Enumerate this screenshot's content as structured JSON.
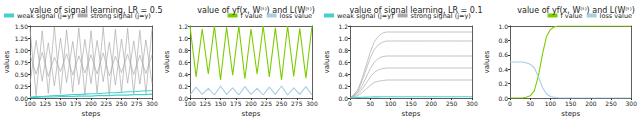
{
  "chart_data": [
    {
      "type": "line",
      "title": "value of signal learning, LR = 0.5",
      "x_label": "steps",
      "y_label": "values",
      "x": [
        100,
        110,
        120,
        130,
        140,
        150,
        160,
        170,
        180,
        190,
        200,
        210,
        220,
        230,
        240,
        250,
        260,
        270,
        280,
        290,
        300
      ],
      "xlim": [
        100,
        300
      ],
      "xticks": [
        100,
        125,
        150,
        175,
        200,
        225,
        250,
        275,
        300
      ],
      "ylim": [
        0,
        1.5
      ],
      "yticks": [
        {
          "value": 0,
          "label": "0.00"
        },
        0.25,
        {
          "value": 0.5,
          "label": "0.50"
        },
        0.75,
        {
          "value": 1,
          "label": "1.00"
        },
        1.25,
        {
          "value": 1.5,
          "label": "1.50"
        }
      ],
      "grid": false,
      "legend": "upper left",
      "series": [
        {
          "name": "weak signal (j=y)",
          "color": "#48d1cc",
          "values": [
            0.02,
            0.03,
            0.03,
            0.04,
            0.05,
            0.05,
            0.06,
            0.07,
            0.07,
            0.08,
            0.09,
            0.09,
            0.1,
            0.11,
            0.11,
            0.12,
            0.13,
            0.13,
            0.14,
            0.15,
            0.15
          ]
        },
        {
          "name": "strong signal (j=y)",
          "color": "#aaaaaa",
          "values": [
            1.45,
            0.05,
            1.4,
            0.1,
            1.48,
            0.08,
            1.42,
            0.12,
            1.46,
            0.06,
            1.4,
            0.1,
            1.47,
            0.05,
            1.43,
            0.11,
            1.45,
            0.07,
            1.41,
            0.09,
            1.44
          ]
        },
        {
          "name": "strong signal (j=y)",
          "color": "#aaaaaa",
          "values": [
            0.3,
            1.2,
            0.35,
            1.15,
            0.25,
            1.25,
            0.32,
            1.18,
            0.28,
            1.22,
            0.3,
            1.2,
            0.34,
            1.16,
            0.27,
            1.23,
            0.31,
            1.19,
            0.29,
            1.21,
            0.3
          ]
        },
        {
          "name": "strong signal (j=y)",
          "color": "#aaaaaa",
          "values": [
            0.9,
            0.5,
            0.95,
            0.45,
            0.85,
            0.55,
            0.92,
            0.48,
            0.88,
            0.52,
            0.9,
            0.5,
            0.94,
            0.46,
            0.87,
            0.53,
            0.91,
            0.49,
            0.89,
            0.51,
            0.9
          ]
        },
        {
          "name": "weak signal (j=y)",
          "color": "#48d1cc",
          "values": [
            0.01,
            0.01,
            0.02,
            0.02,
            0.02,
            0.03,
            0.03,
            0.03,
            0.04,
            0.04,
            0.04,
            0.05,
            0.05,
            0.05,
            0.06,
            0.06,
            0.06,
            0.07,
            0.07,
            0.07,
            0.08
          ]
        }
      ]
    },
    {
      "type": "line",
      "title": "value of yf(x, W⁽ᵗ⁾) and L(W⁽ᵗ⁾)",
      "x_label": "steps",
      "y_label": "values",
      "x": [
        100,
        110,
        120,
        130,
        140,
        150,
        160,
        170,
        180,
        190,
        200,
        210,
        220,
        230,
        240,
        250,
        260,
        270,
        280,
        290,
        300
      ],
      "xlim": [
        100,
        300
      ],
      "xticks": [
        100,
        125,
        150,
        175,
        200,
        225,
        250,
        275,
        300
      ],
      "ylim": [
        0,
        1.2
      ],
      "yticks": [
        {
          "value": 0,
          "label": "0.0"
        },
        0.2,
        0.4,
        0.6,
        0.8,
        {
          "value": 1,
          "label": "1.0"
        },
        1.2
      ],
      "grid": false,
      "legend": "upper right",
      "series": [
        {
          "name": "f value",
          "color": "#7ccd00",
          "values": [
            1.2,
            0.35,
            1.15,
            0.4,
            1.2,
            0.3,
            1.18,
            0.38,
            1.2,
            0.32,
            1.15,
            0.4,
            1.2,
            0.35,
            1.17,
            0.3,
            1.2,
            0.36,
            1.16,
            0.33,
            1.2
          ]
        },
        {
          "name": "loss value",
          "color": "#a6cee3",
          "values": [
            0.05,
            0.18,
            0.06,
            0.16,
            0.05,
            0.2,
            0.06,
            0.17,
            0.05,
            0.19,
            0.06,
            0.16,
            0.05,
            0.18,
            0.06,
            0.2,
            0.05,
            0.17,
            0.06,
            0.19,
            0.05
          ]
        }
      ]
    },
    {
      "type": "line",
      "title": "value of signal learning, LR = 0.1",
      "x_label": "steps",
      "y_label": "values",
      "x": [
        0,
        10,
        20,
        30,
        40,
        50,
        60,
        70,
        80,
        90,
        100,
        110,
        120,
        130,
        140,
        150,
        160,
        170,
        180,
        190,
        200,
        210,
        220,
        230,
        240,
        250,
        260,
        270,
        280,
        290,
        300
      ],
      "xlim": [
        0,
        300
      ],
      "xticks": [
        0,
        50,
        100,
        150,
        200,
        250,
        300
      ],
      "ylim": [
        0,
        1.2
      ],
      "yticks": [
        {
          "value": 0,
          "label": "0.0"
        },
        0.2,
        0.4,
        0.6,
        0.8,
        {
          "value": 1,
          "label": "1.0"
        },
        1.2
      ],
      "grid": false,
      "legend": "upper left",
      "series": [
        {
          "name": "weak signal (j=y)",
          "color": "#48d1cc",
          "values": [
            0,
            0.005,
            0.01,
            0.012,
            0.015,
            0.017,
            0.018,
            0.019,
            0.02,
            0.02,
            0.02,
            0.02,
            0.02,
            0.02,
            0.02,
            0.02,
            0.02,
            0.02,
            0.02,
            0.02,
            0.02,
            0.02,
            0.02,
            0.02,
            0.02,
            0.02,
            0.02,
            0.02,
            0.02,
            0.02,
            0.02
          ]
        },
        {
          "name": "strong signal (j=y)",
          "color": "#aaaaaa",
          "values": [
            0,
            0.06,
            0.15,
            0.33,
            0.55,
            0.77,
            0.94,
            1.03,
            1.08,
            1.1,
            1.1,
            1.1,
            1.1,
            1.1,
            1.1,
            1.1,
            1.1,
            1.1,
            1.1,
            1.1,
            1.1,
            1.1,
            1.1,
            1.1,
            1.1,
            1.1,
            1.1,
            1.1,
            1.1,
            1.1,
            1.1
          ]
        },
        {
          "name": "strong signal (j=y)",
          "color": "#aaaaaa",
          "values": [
            0,
            0.05,
            0.13,
            0.29,
            0.48,
            0.67,
            0.81,
            0.89,
            0.93,
            0.95,
            0.95,
            0.95,
            0.95,
            0.95,
            0.95,
            0.95,
            0.95,
            0.95,
            0.95,
            0.95,
            0.95,
            0.95,
            0.95,
            0.95,
            0.95,
            0.95,
            0.95,
            0.95,
            0.95,
            0.95,
            0.95
          ]
        },
        {
          "name": "strong signal (j=y)",
          "color": "#aaaaaa",
          "values": [
            0,
            0.04,
            0.1,
            0.21,
            0.35,
            0.49,
            0.6,
            0.66,
            0.69,
            0.7,
            0.7,
            0.7,
            0.7,
            0.7,
            0.7,
            0.7,
            0.7,
            0.7,
            0.7,
            0.7,
            0.7,
            0.7,
            0.7,
            0.7,
            0.7,
            0.7,
            0.7,
            0.7,
            0.7,
            0.7,
            0.7
          ]
        },
        {
          "name": "strong signal (j=y)",
          "color": "#aaaaaa",
          "values": [
            0,
            0.03,
            0.07,
            0.15,
            0.25,
            0.35,
            0.43,
            0.47,
            0.49,
            0.5,
            0.5,
            0.5,
            0.5,
            0.5,
            0.5,
            0.5,
            0.5,
            0.5,
            0.5,
            0.5,
            0.5,
            0.5,
            0.5,
            0.5,
            0.5,
            0.5,
            0.5,
            0.5,
            0.5,
            0.5,
            0.5
          ]
        },
        {
          "name": "strong signal (j=y)",
          "color": "#aaaaaa",
          "values": [
            0,
            0.02,
            0.04,
            0.09,
            0.15,
            0.21,
            0.26,
            0.28,
            0.29,
            0.3,
            0.3,
            0.3,
            0.3,
            0.3,
            0.3,
            0.3,
            0.3,
            0.3,
            0.3,
            0.3,
            0.3,
            0.3,
            0.3,
            0.3,
            0.3,
            0.3,
            0.3,
            0.3,
            0.3,
            0.3,
            0.3
          ]
        }
      ]
    },
    {
      "type": "line",
      "title": "value of yf(x, W⁽ᵗ⁾) and L(W⁽ᵗ⁾)",
      "x_label": "steps",
      "y_label": "values",
      "x": [
        0,
        10,
        20,
        30,
        40,
        50,
        60,
        70,
        80,
        90,
        100,
        110,
        120,
        130,
        140,
        150,
        160,
        170,
        180,
        190,
        200,
        210,
        220,
        230,
        240,
        250,
        260,
        270,
        280,
        290,
        300
      ],
      "xlim": [
        0,
        300
      ],
      "xticks": [
        0,
        50,
        100,
        150,
        200,
        250,
        300
      ],
      "ylim": [
        0,
        1
      ],
      "yticks": [
        {
          "value": 0,
          "label": "0.0"
        },
        0.2,
        0.4,
        0.6,
        0.8,
        {
          "value": 1,
          "label": "1.0"
        }
      ],
      "grid": false,
      "legend": "upper right",
      "series": [
        {
          "name": "f value",
          "color": "#7ccd00",
          "values": [
            0,
            0,
            0,
            0,
            0.01,
            0.03,
            0.1,
            0.3,
            0.6,
            0.85,
            0.95,
            0.99,
            1,
            1,
            1,
            1,
            1,
            1,
            1,
            1,
            1,
            1,
            1,
            1,
            1,
            1,
            1,
            1,
            1,
            1,
            1
          ]
        },
        {
          "name": "loss value",
          "color": "#a6cee3",
          "values": [
            0.5,
            0.5,
            0.5,
            0.5,
            0.49,
            0.47,
            0.42,
            0.3,
            0.15,
            0.06,
            0.02,
            0.01,
            0,
            0,
            0,
            0,
            0,
            0,
            0,
            0,
            0,
            0,
            0,
            0,
            0,
            0,
            0,
            0,
            0,
            0,
            0
          ]
        }
      ]
    }
  ]
}
